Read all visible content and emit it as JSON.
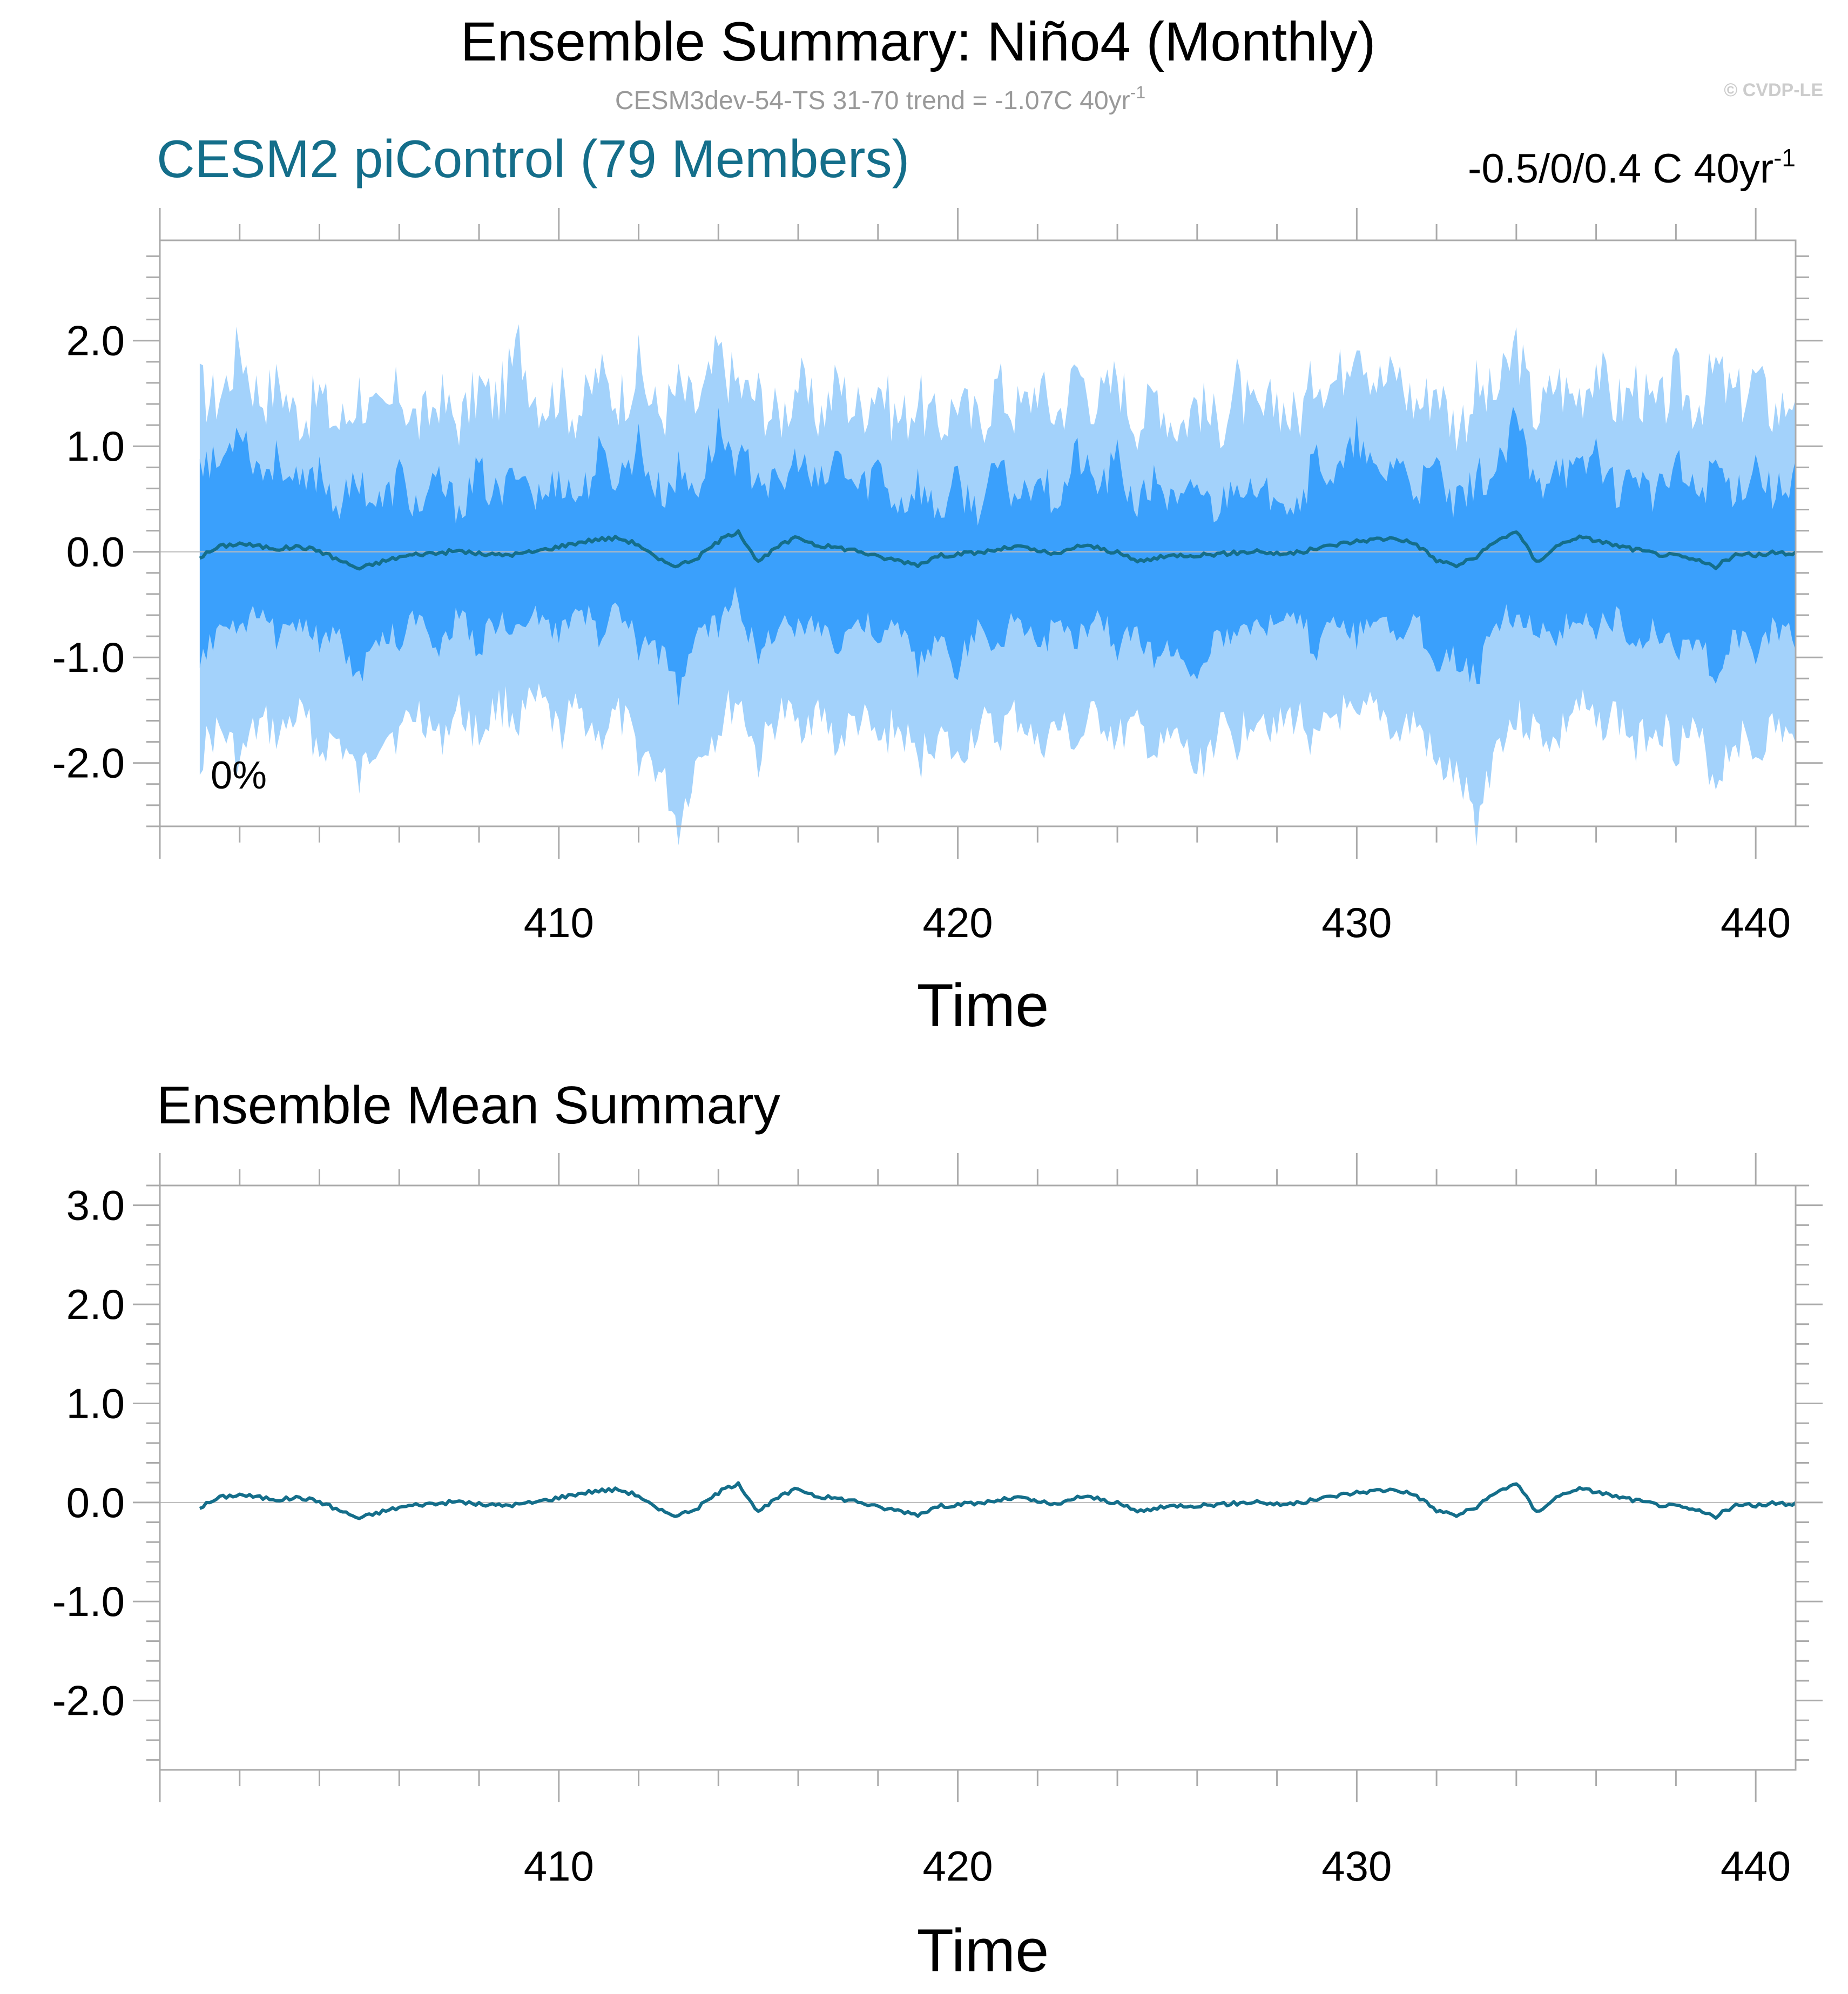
{
  "header": {
    "title": "Ensemble Summary: Niño4 (Monthly)",
    "subtitle": "CESM3dev-54-TS 31-70 trend = -1.07C 40yr",
    "subtitle_sup": "-1",
    "copyright": "© CVDP-LE"
  },
  "colors": {
    "outer_band": "#a3d2fb",
    "inner_band": "#3aa0fc",
    "mean_line": "#146e8a",
    "zero_line": "#bbbbbb"
  },
  "chart_data": [
    {
      "type": "area",
      "left_title": "CESM2 piControl (79 Members)",
      "right_title": "-0.5/0/0.4 C 40yr",
      "right_title_sup": "-1",
      "annotation": "0%",
      "xlabel": "Time",
      "ylabel": "",
      "xlim": [
        400.0,
        441.0
      ],
      "ylim": [
        -2.6,
        2.95
      ],
      "x_ticks": [
        410,
        420,
        430,
        440
      ],
      "x_tick_labels": [
        "410",
        "420",
        "430",
        "440"
      ],
      "y_ticks": [
        -2.0,
        -1.0,
        0.0,
        1.0,
        2.0
      ],
      "y_tick_labels": [
        "-2.0",
        "-1.0",
        "0.0",
        "1.0",
        "2.0"
      ],
      "series": [
        {
          "role": "outer-band",
          "x": [
            401.0,
            402.0,
            403.0,
            404.0,
            405.0,
            406.0,
            407.0,
            408.0,
            409.0,
            410.0,
            411.0,
            412.0,
            413.0,
            414.0,
            415.0,
            416.0,
            417.0,
            418.0,
            419.0,
            420.0,
            421.0,
            422.0,
            423.0,
            424.0,
            425.0,
            426.0,
            427.0,
            428.0,
            429.0,
            430.0,
            431.0,
            432.0,
            433.0,
            434.0,
            435.0,
            436.0,
            437.0,
            438.0,
            439.0,
            440.0,
            441.0
          ],
          "upper": [
            1.6,
            1.9,
            1.6,
            1.5,
            1.7,
            1.6,
            1.5,
            1.6,
            2.0,
            1.5,
            1.6,
            1.7,
            1.7,
            1.8,
            1.6,
            1.5,
            1.6,
            1.7,
            1.6,
            1.5,
            1.6,
            1.6,
            1.7,
            1.7,
            1.6,
            1.5,
            1.6,
            1.5,
            1.7,
            2.05,
            1.6,
            1.7,
            1.6,
            1.8,
            1.6,
            1.7,
            1.6,
            1.7,
            1.9,
            1.7,
            1.6
          ],
          "lower": [
            -1.9,
            -2.1,
            -1.8,
            -1.9,
            -2.05,
            -1.7,
            -1.8,
            -1.75,
            -1.6,
            -1.8,
            -1.9,
            -2.0,
            -2.5,
            -1.8,
            -1.9,
            -1.8,
            -1.9,
            -1.8,
            -1.9,
            -2.0,
            -1.8,
            -1.9,
            -1.9,
            -1.8,
            -1.9,
            -2.1,
            -1.8,
            -1.7,
            -1.9,
            -1.8,
            -1.9,
            -2.0,
            -2.55,
            -1.8,
            -1.9,
            -1.8,
            -1.9,
            -1.8,
            -2.05,
            -1.9,
            -1.9
          ]
        },
        {
          "role": "inner-band",
          "x": [
            401.0,
            402.0,
            403.0,
            404.0,
            405.0,
            406.0,
            407.0,
            408.0,
            409.0,
            410.0,
            411.0,
            412.0,
            413.0,
            414.0,
            415.0,
            416.0,
            417.0,
            418.0,
            419.0,
            420.0,
            421.0,
            422.0,
            423.0,
            424.0,
            425.0,
            426.0,
            427.0,
            428.0,
            429.0,
            430.0,
            431.0,
            432.0,
            433.0,
            434.0,
            435.0,
            436.0,
            437.0,
            438.0,
            439.0,
            440.0,
            441.0
          ],
          "upper": [
            1.0,
            1.2,
            0.9,
            0.8,
            0.9,
            0.8,
            0.7,
            0.8,
            0.9,
            0.7,
            0.8,
            1.0,
            0.9,
            1.1,
            0.9,
            0.8,
            0.9,
            0.9,
            0.8,
            0.7,
            0.8,
            0.8,
            0.9,
            0.9,
            0.8,
            0.7,
            0.8,
            0.7,
            0.9,
            1.0,
            0.8,
            0.9,
            0.8,
            1.1,
            0.9,
            0.9,
            0.8,
            0.9,
            1.0,
            0.9,
            0.85
          ],
          "lower": [
            -1.1,
            -0.9,
            -0.9,
            -0.9,
            -1.1,
            -0.8,
            -0.9,
            -0.9,
            -0.8,
            -0.9,
            -0.9,
            -1.0,
            -1.2,
            -0.8,
            -1.0,
            -0.9,
            -1.0,
            -0.8,
            -1.0,
            -1.1,
            -0.9,
            -1.0,
            -0.9,
            -0.9,
            -1.0,
            -1.2,
            -0.9,
            -0.8,
            -1.0,
            -0.9,
            -1.0,
            -1.0,
            -1.2,
            -0.8,
            -1.0,
            -0.9,
            -1.0,
            -0.9,
            -1.1,
            -1.0,
            -0.9
          ]
        },
        {
          "role": "ensemble-mean",
          "x": [
            401.0,
            401.5,
            402.0,
            402.5,
            403.0,
            403.5,
            404.0,
            404.5,
            405.0,
            405.5,
            406.0,
            406.5,
            407.0,
            407.5,
            408.0,
            408.5,
            409.0,
            409.5,
            410.0,
            410.5,
            411.0,
            411.5,
            412.0,
            412.5,
            413.0,
            413.5,
            414.0,
            414.5,
            415.0,
            415.5,
            416.0,
            416.5,
            417.0,
            417.5,
            418.0,
            418.5,
            419.0,
            419.5,
            420.0,
            420.5,
            421.0,
            421.5,
            422.0,
            422.5,
            423.0,
            423.5,
            424.0,
            424.5,
            425.0,
            425.5,
            426.0,
            426.5,
            427.0,
            427.5,
            428.0,
            428.5,
            429.0,
            429.5,
            430.0,
            430.5,
            431.0,
            431.5,
            432.0,
            432.5,
            433.0,
            433.5,
            434.0,
            434.5,
            435.0,
            435.5,
            436.0,
            436.5,
            437.0,
            437.5,
            438.0,
            438.5,
            439.0,
            439.5,
            440.0,
            440.5,
            441.0
          ],
          "values": [
            -0.05,
            0.05,
            0.08,
            0.05,
            0.03,
            0.05,
            0.01,
            -0.08,
            -0.16,
            -0.1,
            -0.05,
            -0.02,
            -0.01,
            0.01,
            -0.02,
            -0.03,
            -0.02,
            0.01,
            0.05,
            0.09,
            0.12,
            0.13,
            0.07,
            -0.08,
            -0.13,
            -0.05,
            0.1,
            0.2,
            -0.1,
            0.05,
            0.14,
            0.06,
            0.04,
            0.01,
            -0.05,
            -0.08,
            -0.12,
            -0.04,
            -0.02,
            -0.01,
            0.02,
            0.05,
            0.01,
            -0.03,
            0.06,
            0.04,
            -0.01,
            -0.09,
            -0.06,
            -0.03,
            -0.03,
            -0.02,
            -0.01,
            0.01,
            -0.02,
            -0.01,
            0.03,
            0.07,
            0.1,
            0.12,
            0.13,
            0.07,
            -0.08,
            -0.13,
            -0.05,
            0.1,
            0.2,
            -0.1,
            0.05,
            0.14,
            0.11,
            0.06,
            0.02,
            -0.02,
            -0.04,
            -0.08,
            -0.14,
            -0.03,
            -0.03,
            -0.01,
            -0.01
          ]
        }
      ]
    },
    {
      "type": "line",
      "left_title": "Ensemble Mean Summary",
      "xlabel": "Time",
      "ylabel": "",
      "xlim": [
        400.0,
        441.0
      ],
      "ylim": [
        -2.7,
        3.2
      ],
      "x_ticks": [
        410,
        420,
        430,
        440
      ],
      "x_tick_labels": [
        "410",
        "420",
        "430",
        "440"
      ],
      "y_ticks": [
        -2.0,
        -1.0,
        0.0,
        1.0,
        2.0,
        3.0
      ],
      "y_tick_labels": [
        "-2.0",
        "-1.0",
        "0.0",
        "1.0",
        "2.0",
        "3.0"
      ],
      "series": [
        {
          "role": "ensemble-mean",
          "x": [
            401.0,
            401.5,
            402.0,
            402.5,
            403.0,
            403.5,
            404.0,
            404.5,
            405.0,
            405.5,
            406.0,
            406.5,
            407.0,
            407.5,
            408.0,
            408.5,
            409.0,
            409.5,
            410.0,
            410.5,
            411.0,
            411.5,
            412.0,
            412.5,
            413.0,
            413.5,
            414.0,
            414.5,
            415.0,
            415.5,
            416.0,
            416.5,
            417.0,
            417.5,
            418.0,
            418.5,
            419.0,
            419.5,
            420.0,
            420.5,
            421.0,
            421.5,
            422.0,
            422.5,
            423.0,
            423.5,
            424.0,
            424.5,
            425.0,
            425.5,
            426.0,
            426.5,
            427.0,
            427.5,
            428.0,
            428.5,
            429.0,
            429.5,
            430.0,
            430.5,
            431.0,
            431.5,
            432.0,
            432.5,
            433.0,
            433.5,
            434.0,
            434.5,
            435.0,
            435.5,
            436.0,
            436.5,
            437.0,
            437.5,
            438.0,
            438.5,
            439.0,
            439.5,
            440.0,
            440.5,
            441.0
          ],
          "values": [
            -0.05,
            0.05,
            0.08,
            0.05,
            0.03,
            0.05,
            0.01,
            -0.08,
            -0.16,
            -0.1,
            -0.05,
            -0.02,
            -0.01,
            0.01,
            -0.02,
            -0.03,
            -0.02,
            0.01,
            0.05,
            0.09,
            0.12,
            0.13,
            0.07,
            -0.08,
            -0.13,
            -0.05,
            0.1,
            0.2,
            -0.1,
            0.05,
            0.14,
            0.06,
            0.04,
            0.01,
            -0.05,
            -0.08,
            -0.12,
            -0.04,
            -0.02,
            -0.01,
            0.02,
            0.05,
            0.01,
            -0.03,
            0.06,
            0.04,
            -0.01,
            -0.09,
            -0.06,
            -0.03,
            -0.03,
            -0.02,
            -0.01,
            0.01,
            -0.02,
            -0.01,
            0.03,
            0.07,
            0.1,
            0.12,
            0.13,
            0.07,
            -0.08,
            -0.13,
            -0.05,
            0.1,
            0.2,
            -0.1,
            0.05,
            0.14,
            0.11,
            0.06,
            0.02,
            -0.02,
            -0.04,
            -0.08,
            -0.14,
            -0.03,
            -0.03,
            -0.01,
            -0.01
          ]
        }
      ]
    }
  ]
}
